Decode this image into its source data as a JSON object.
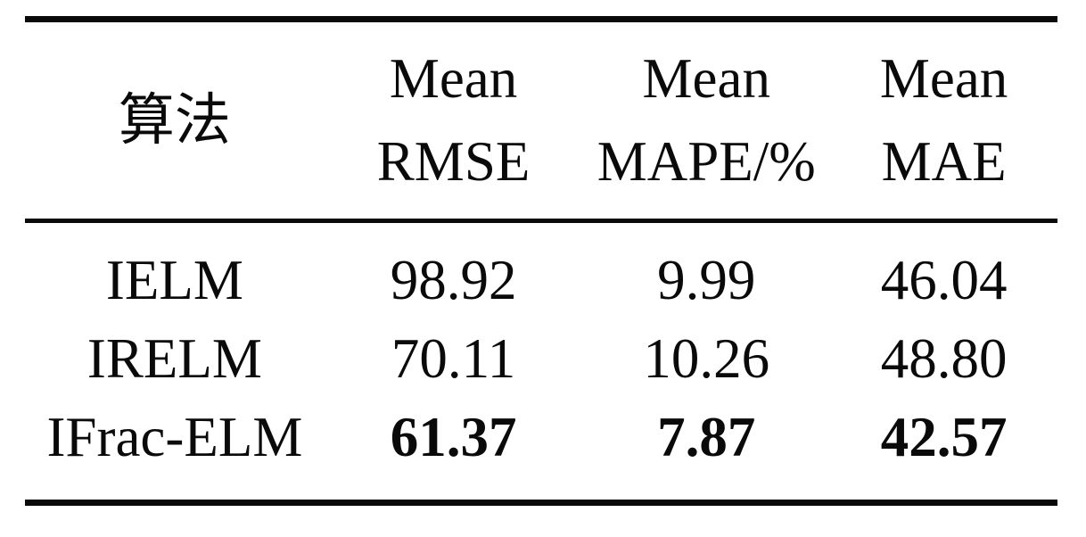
{
  "table": {
    "columns": [
      {
        "label": "算法"
      },
      {
        "line1": "Mean",
        "line2": "RMSE"
      },
      {
        "line1": "Mean",
        "line2": "MAPE/%"
      },
      {
        "line1": "Mean",
        "line2": "MAE"
      }
    ],
    "rows": [
      {
        "algorithm": "IELM",
        "rmse": "98.92",
        "mape": "9.99",
        "mae": "46.04",
        "values_bold": false
      },
      {
        "algorithm": "IRELM",
        "rmse": "70.11",
        "mape": "10.26",
        "mae": "48.80",
        "values_bold": false
      },
      {
        "algorithm": "IFrac-ELM",
        "rmse": "61.37",
        "mape": "7.87",
        "mae": "42.57",
        "values_bold": true
      }
    ],
    "style": {
      "text_color": "#0a0a0a",
      "background_color": "#ffffff"
    }
  }
}
